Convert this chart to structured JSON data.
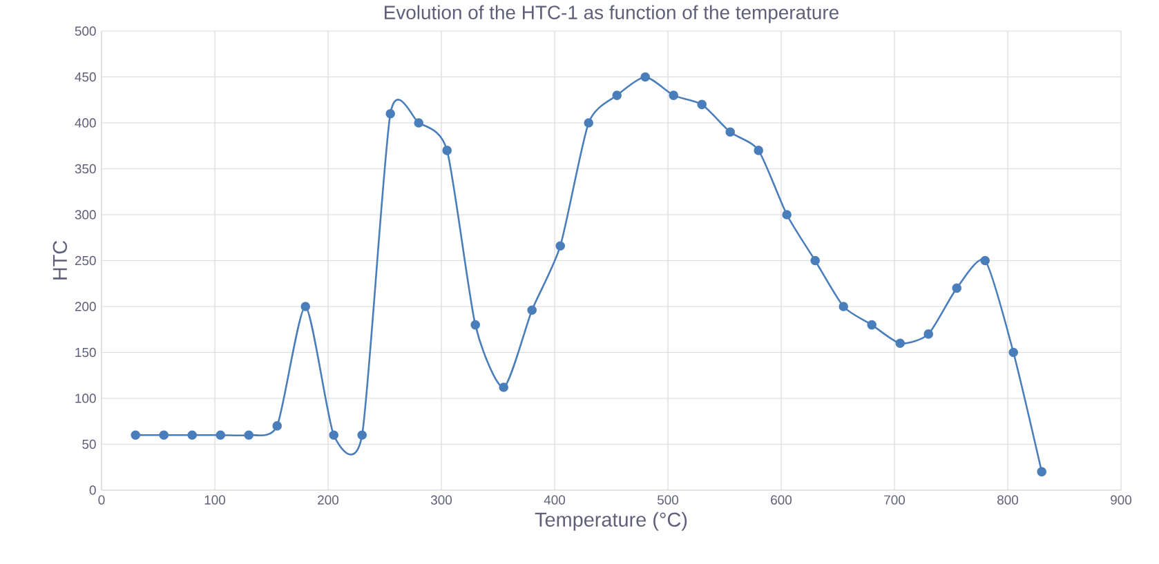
{
  "chart_data": {
    "type": "line",
    "title": "Evolution of the HTC-1 as function of the temperature",
    "xlabel": "Temperature (°C)",
    "ylabel": "HTC",
    "x": [
      30,
      55,
      80,
      105,
      130,
      155,
      180,
      205,
      230,
      255,
      280,
      305,
      330,
      355,
      380,
      405,
      430,
      455,
      480,
      505,
      530,
      555,
      580,
      605,
      630,
      655,
      680,
      705,
      730,
      755,
      780,
      805,
      830
    ],
    "series": [
      {
        "color": "#4a7ebb",
        "values": [
          60,
          60,
          60,
          60,
          60,
          70,
          200,
          60,
          60,
          410,
          400,
          370,
          180,
          112,
          196,
          266,
          400,
          430,
          450,
          430,
          420,
          390,
          370,
          300,
          250,
          200,
          180,
          160,
          170,
          220,
          250,
          150,
          20
        ]
      }
    ],
    "xlim": [
      0,
      900
    ],
    "xticks": [
      0,
      100,
      200,
      300,
      400,
      500,
      600,
      700,
      800,
      900
    ],
    "ylim": [
      0,
      500
    ],
    "yticks": [
      0,
      50,
      100,
      150,
      200,
      250,
      300,
      350,
      400,
      450,
      500
    ],
    "grid": true,
    "marker": "circle",
    "line_style": "solid"
  }
}
